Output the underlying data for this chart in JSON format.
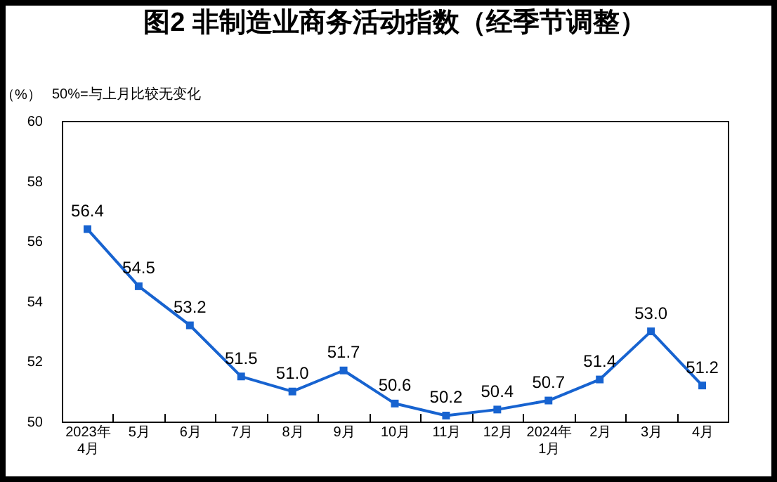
{
  "chart_data": {
    "type": "line",
    "title": "图2  非制造业商务活动指数（经季节调整）",
    "ylabel": "（%）",
    "annotations": [
      "50%=与上月比较无变化"
    ],
    "categories": [
      "2023年\n4月",
      "5月",
      "6月",
      "7月",
      "8月",
      "9月",
      "10月",
      "11月",
      "12月",
      "2024年\n1月",
      "2月",
      "3月",
      "4月"
    ],
    "series": [
      {
        "color": "#1763d0",
        "values": [
          56.4,
          54.5,
          53.2,
          51.5,
          51.0,
          51.7,
          50.6,
          50.2,
          50.4,
          50.7,
          51.4,
          53.0,
          51.2
        ],
        "value_labels": [
          "56.4",
          "54.5",
          "53.2",
          "51.5",
          "51.0",
          "51.7",
          "50.6",
          "50.2",
          "50.4",
          "50.7",
          "51.4",
          "53.0",
          "51.2"
        ]
      }
    ],
    "ylim": [
      50,
      60
    ],
    "yticks": [
      50,
      52,
      54,
      56,
      58,
      60
    ],
    "marker": "square",
    "line_style": "solid",
    "grid": false,
    "legend": false
  }
}
